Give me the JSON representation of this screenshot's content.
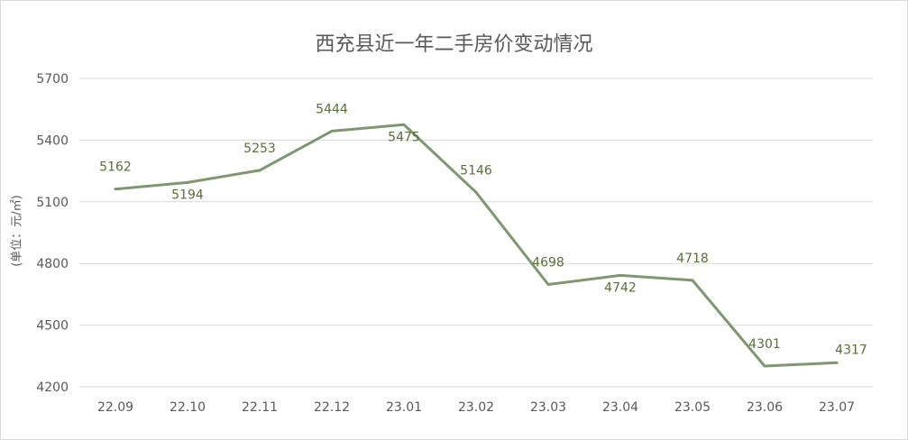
{
  "chart_data": {
    "type": "line",
    "title": "西充县近一年二手房价变动情况",
    "ylabel": "(单位：元/㎡)",
    "xlabel": "",
    "categories": [
      "22.09",
      "22.10",
      "22.11",
      "22.12",
      "23.01",
      "23.02",
      "23.03",
      "23.04",
      "23.05",
      "23.06",
      "23.07"
    ],
    "series": [
      {
        "values": [
          5162,
          5194,
          5253,
          5444,
          5475,
          5146,
          4698,
          4742,
          4718,
          4301,
          4317
        ]
      }
    ],
    "ylim": [
      4200,
      5700
    ],
    "yticks": [
      4200,
      4500,
      4800,
      5100,
      5400,
      5700
    ],
    "grid": true,
    "legend": "none",
    "data_labels": true,
    "line_color": "#7f9770",
    "label_color": "#5a6e3a",
    "grid_color": "#d9d9d9"
  }
}
